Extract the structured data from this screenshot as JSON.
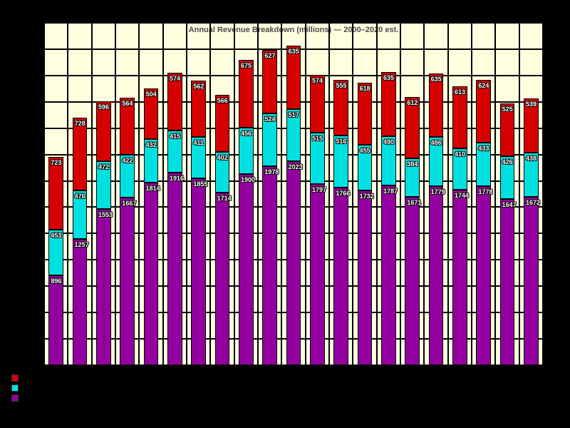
{
  "chart": {
    "type": "stacked-bar",
    "title": "Annual Revenue Breakdown (millions) — 2000–2020 est.",
    "background_color": "#ffffe0",
    "grid_color": "#000000",
    "title_fontsize": 11,
    "value_fontsize": 9,
    "bar_fill_ratio": 0.62,
    "ylim": [
      0,
      3400
    ],
    "n_gridlines_h": 13,
    "segment_colors": [
      "#9400a0",
      "#00e0e0",
      "#d60000"
    ],
    "segment_border": "#000000",
    "categories": [
      {
        "segments": [
          896,
          453,
          723
        ]
      },
      {
        "segments": [
          1257,
          476,
          728
        ]
      },
      {
        "segments": [
          1553,
          472,
          596
        ]
      },
      {
        "segments": [
          1667,
          422,
          564
        ]
      },
      {
        "segments": [
          1814,
          432,
          504
        ]
      },
      {
        "segments": [
          1916,
          415,
          574
        ]
      },
      {
        "segments": [
          1855,
          411,
          562
        ]
      },
      {
        "segments": [
          1714,
          402,
          566
        ]
      },
      {
        "segments": [
          1900,
          456,
          675
        ]
      },
      {
        "segments": [
          1978,
          524,
          627
        ]
      },
      {
        "segments": [
          2023,
          517,
          635
        ]
      },
      {
        "segments": [
          1797,
          515,
          574
        ]
      },
      {
        "segments": [
          1766,
          516,
          555
        ]
      },
      {
        "segments": [
          1732,
          455,
          618
        ]
      },
      {
        "segments": [
          1787,
          490,
          635
        ]
      },
      {
        "segments": [
          1671,
          384,
          612
        ]
      },
      {
        "segments": [
          1779,
          486,
          635
        ]
      },
      {
        "segments": [
          1744,
          410,
          613
        ]
      },
      {
        "segments": [
          1778,
          433,
          624
        ]
      },
      {
        "segments": [
          1647,
          426,
          525
        ]
      },
      {
        "segments": [
          1672,
          438,
          539
        ]
      }
    ],
    "legend": {
      "items": [
        {
          "color": "#d60000",
          "label": ""
        },
        {
          "color": "#00e0e0",
          "label": ""
        },
        {
          "color": "#9400a0",
          "label": ""
        }
      ]
    }
  }
}
